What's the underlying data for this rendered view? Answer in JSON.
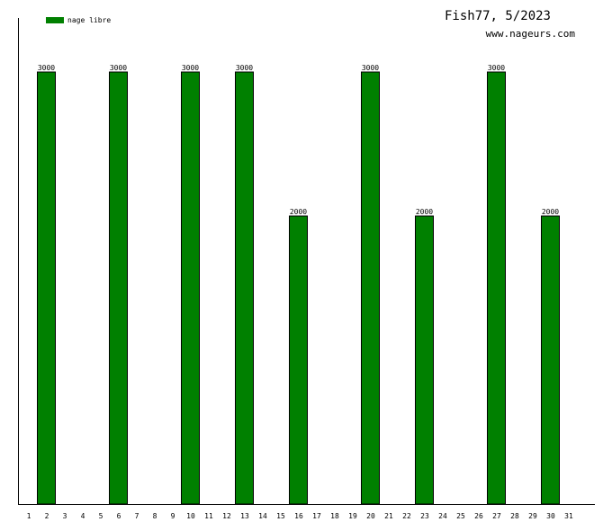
{
  "header": {
    "title": "Fish77, 5/2023",
    "url": "www.nageurs.com"
  },
  "legend": {
    "label": "nage libre",
    "color": "#008000"
  },
  "chart_data": {
    "type": "bar",
    "title": "Fish77, 5/2023",
    "xlabel": "",
    "ylabel": "",
    "categories": [
      "1",
      "2",
      "3",
      "4",
      "5",
      "6",
      "7",
      "8",
      "9",
      "10",
      "11",
      "12",
      "13",
      "14",
      "15",
      "16",
      "17",
      "18",
      "19",
      "20",
      "21",
      "22",
      "23",
      "24",
      "25",
      "26",
      "27",
      "28",
      "29",
      "30",
      "31"
    ],
    "series": [
      {
        "name": "nage libre",
        "color": "#008000",
        "values": [
          0,
          3000,
          0,
          0,
          0,
          3000,
          0,
          0,
          0,
          3000,
          0,
          0,
          3000,
          0,
          0,
          2000,
          0,
          0,
          0,
          3000,
          0,
          0,
          2000,
          0,
          0,
          0,
          3000,
          0,
          0,
          2000,
          0
        ]
      }
    ],
    "ylim": [
      0,
      3375
    ],
    "grid": false,
    "legend_position": "top-left"
  }
}
